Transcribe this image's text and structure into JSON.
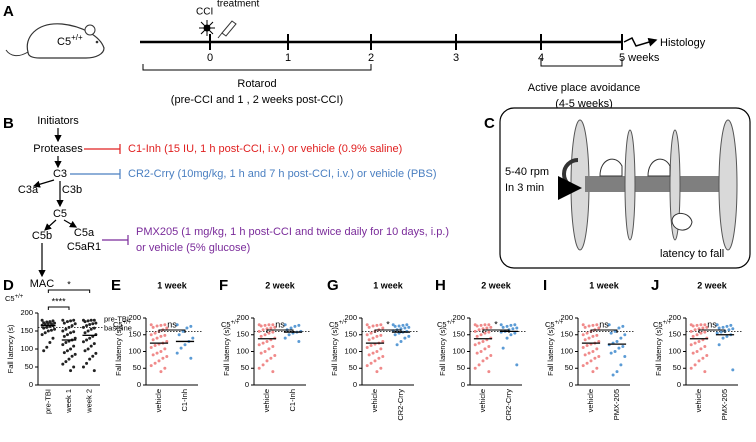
{
  "panel_a": {
    "label": "A",
    "mouse": {
      "base": "C5",
      "sup": "+/+"
    },
    "cci": "CCI",
    "treatment": "treatment",
    "timeline": [
      "0",
      "1",
      "2",
      "3",
      "4",
      "5 weeks"
    ],
    "histology": "Histology",
    "rotarod": "Rotarod",
    "rotarod_note": "(pre-CCI and 1 , 2 weeks post-CCI)",
    "avoidance": "Active place avoidance",
    "avoidance_note": "(4-5 weeks)"
  },
  "panel_b": {
    "label": "B",
    "nodes": [
      "Initiators",
      "Proteases",
      "C3",
      "C3a",
      "C3b",
      "C5",
      "C5b",
      "C5a",
      "C5aR1",
      "MAC"
    ],
    "treatments": [
      "C1-Inh (15 IU, 1 h post-CCI, i.v.) or vehicle (0.9% saline)",
      "CR2-Crry (10mg/kg, 1 h and 7 h post-CCI, i.v.) or vehicle (PBS)",
      "PMX205 (1 mg/kg, 1 h post-CCI and twice daily for 10 days, i.p.)",
      "or vehicle (5% glucose)"
    ]
  },
  "panel_c": {
    "label": "C",
    "speed": "5-40 rpm",
    "duration": "In 3 min",
    "fall": "latency to fall"
  },
  "chart_data": [
    {
      "type": "dot",
      "label": "D",
      "genotype": {
        "base": "C5",
        "sup": "+/+"
      },
      "ylabel": "Fall latency (s)",
      "ylim": [
        0,
        200
      ],
      "yticks": [
        0,
        50,
        100,
        150,
        200
      ],
      "baseline": 160,
      "baseline_label": [
        "pre-TBI",
        "baseline"
      ],
      "significance": [
        "****",
        "*"
      ],
      "series": [
        {
          "name": "pre-TBI",
          "color": "#222222",
          "mean": 165,
          "values": [
            180,
            178,
            176,
            175,
            173,
            172,
            170,
            170,
            168,
            166,
            165,
            163,
            160,
            158,
            155,
            152,
            150,
            145,
            140,
            130,
            118,
            105,
            95
          ]
        },
        {
          "name": "week 1",
          "color": "#222222",
          "mean": 125,
          "values": [
            180,
            180,
            178,
            176,
            172,
            170,
            165,
            160,
            155,
            150,
            148,
            145,
            140,
            135,
            130,
            125,
            122,
            118,
            112,
            108,
            100,
            95,
            90,
            85,
            80,
            72,
            65,
            58,
            50,
            40
          ]
        },
        {
          "name": "week 2",
          "color": "#222222",
          "mean": 138,
          "values": [
            180,
            180,
            180,
            178,
            176,
            172,
            170,
            168,
            165,
            160,
            158,
            155,
            150,
            145,
            140,
            135,
            130,
            125,
            120,
            115,
            108,
            100,
            95,
            88,
            80,
            72,
            60,
            50,
            40
          ]
        }
      ]
    },
    {
      "type": "dot",
      "label": "E",
      "title": "1 week",
      "genotype": {
        "base": "C5",
        "sup": "+/+"
      },
      "ylabel": "Fall latency (s)",
      "ylim": [
        0,
        200
      ],
      "yticks": [
        0,
        50,
        100,
        150,
        200
      ],
      "baseline": 160,
      "significance": [
        "ns"
      ],
      "series": [
        {
          "name": "vehicle",
          "color": "#f08a8a",
          "mean": 125,
          "values": [
            180,
            180,
            178,
            176,
            172,
            170,
            165,
            160,
            155,
            150,
            148,
            145,
            140,
            135,
            130,
            125,
            122,
            118,
            112,
            108,
            100,
            95,
            90,
            85,
            80,
            72,
            65,
            58,
            50,
            40
          ]
        },
        {
          "name": "C1-Inh",
          "color": "#5b9bd5",
          "mean": 130,
          "values": [
            180,
            175,
            170,
            160,
            150,
            140,
            130,
            120,
            110,
            95,
            80
          ]
        }
      ]
    },
    {
      "type": "dot",
      "label": "F",
      "title": "2 week",
      "genotype": {
        "base": "C5",
        "sup": "+/+"
      },
      "ylabel": "Fall latency (s)",
      "ylim": [
        0,
        200
      ],
      "yticks": [
        0,
        50,
        100,
        150,
        200
      ],
      "baseline": 160,
      "significance": [
        "ns"
      ],
      "series": [
        {
          "name": "vehicle",
          "color": "#f08a8a",
          "mean": 138,
          "values": [
            180,
            180,
            180,
            178,
            176,
            172,
            170,
            168,
            165,
            160,
            158,
            155,
            150,
            145,
            140,
            135,
            130,
            125,
            120,
            115,
            108,
            100,
            95,
            88,
            80,
            72,
            60,
            50,
            40
          ]
        },
        {
          "name": "C1-Inh",
          "color": "#5b9bd5",
          "mean": 158,
          "values": [
            180,
            178,
            175,
            170,
            165,
            160,
            158,
            155,
            150,
            140,
            130
          ]
        }
      ]
    },
    {
      "type": "dot",
      "label": "G",
      "title": "1 week",
      "genotype": {
        "base": "C5",
        "sup": "+/+"
      },
      "ylabel": "Fall latency (s)",
      "ylim": [
        0,
        200
      ],
      "yticks": [
        0,
        50,
        100,
        150,
        200
      ],
      "baseline": 160,
      "significance": [
        "*"
      ],
      "series": [
        {
          "name": "vehicle",
          "color": "#f08a8a",
          "mean": 125,
          "values": [
            180,
            180,
            178,
            176,
            172,
            170,
            165,
            160,
            155,
            150,
            148,
            145,
            140,
            135,
            130,
            125,
            122,
            118,
            112,
            108,
            100,
            95,
            90,
            85,
            80,
            72,
            65,
            58,
            50,
            40
          ]
        },
        {
          "name": "CR2-Crry",
          "color": "#5b9bd5",
          "mean": 158,
          "values": [
            180,
            180,
            178,
            176,
            175,
            172,
            170,
            168,
            165,
            162,
            160,
            158,
            155,
            150,
            145,
            140,
            130,
            120
          ]
        }
      ]
    },
    {
      "type": "dot",
      "label": "H",
      "title": "2 week",
      "genotype": {
        "base": "C5",
        "sup": "+/+"
      },
      "ylabel": "Fall latency (s)",
      "ylim": [
        0,
        200
      ],
      "yticks": [
        0,
        50,
        100,
        150,
        200
      ],
      "baseline": 160,
      "significance": [
        "*"
      ],
      "series": [
        {
          "name": "vehicle",
          "color": "#f08a8a",
          "mean": 138,
          "values": [
            180,
            180,
            180,
            178,
            176,
            172,
            170,
            168,
            165,
            160,
            158,
            155,
            150,
            145,
            140,
            135,
            130,
            125,
            120,
            115,
            108,
            100,
            95,
            88,
            80,
            72,
            60,
            50,
            40
          ]
        },
        {
          "name": "CR2-Crry",
          "color": "#5b9bd5",
          "mean": 160,
          "values": [
            180,
            180,
            178,
            175,
            172,
            170,
            168,
            165,
            160,
            158,
            155,
            150,
            140,
            110,
            60
          ]
        }
      ]
    },
    {
      "type": "dot",
      "label": "I",
      "title": "1 week",
      "genotype": {
        "base": "C5",
        "sup": "+/+"
      },
      "ylabel": "Fall latency (s)",
      "ylim": [
        0,
        200
      ],
      "yticks": [
        0,
        50,
        100,
        150,
        200
      ],
      "baseline": 160,
      "significance": [
        "ns"
      ],
      "series": [
        {
          "name": "vehicle",
          "color": "#f08a8a",
          "mean": 125,
          "values": [
            180,
            180,
            178,
            176,
            172,
            170,
            165,
            160,
            155,
            150,
            148,
            145,
            140,
            135,
            130,
            125,
            122,
            118,
            112,
            108,
            100,
            95,
            90,
            85,
            80,
            72,
            65,
            58,
            50,
            40
          ]
        },
        {
          "name": "PMX-205",
          "color": "#5b9bd5",
          "mean": 122,
          "values": [
            180,
            175,
            170,
            160,
            155,
            150,
            140,
            130,
            125,
            120,
            115,
            110,
            100,
            95,
            85,
            60,
            40,
            30
          ]
        }
      ]
    },
    {
      "type": "dot",
      "label": "J",
      "title": "2 week",
      "genotype": {
        "base": "C5",
        "sup": "+/+"
      },
      "ylabel": "Fall latency (s)",
      "ylim": [
        0,
        200
      ],
      "yticks": [
        0,
        50,
        100,
        150,
        200
      ],
      "baseline": 160,
      "significance": [
        "ns"
      ],
      "series": [
        {
          "name": "vehicle",
          "color": "#f08a8a",
          "mean": 138,
          "values": [
            180,
            180,
            180,
            178,
            176,
            172,
            170,
            168,
            165,
            160,
            158,
            155,
            150,
            145,
            140,
            135,
            130,
            125,
            120,
            115,
            108,
            100,
            95,
            88,
            80,
            72,
            60,
            50,
            40
          ]
        },
        {
          "name": "PMX-205",
          "color": "#5b9bd5",
          "mean": 150,
          "values": [
            180,
            178,
            175,
            172,
            170,
            168,
            165,
            160,
            158,
            155,
            150,
            145,
            140,
            120,
            45
          ]
        }
      ]
    }
  ]
}
